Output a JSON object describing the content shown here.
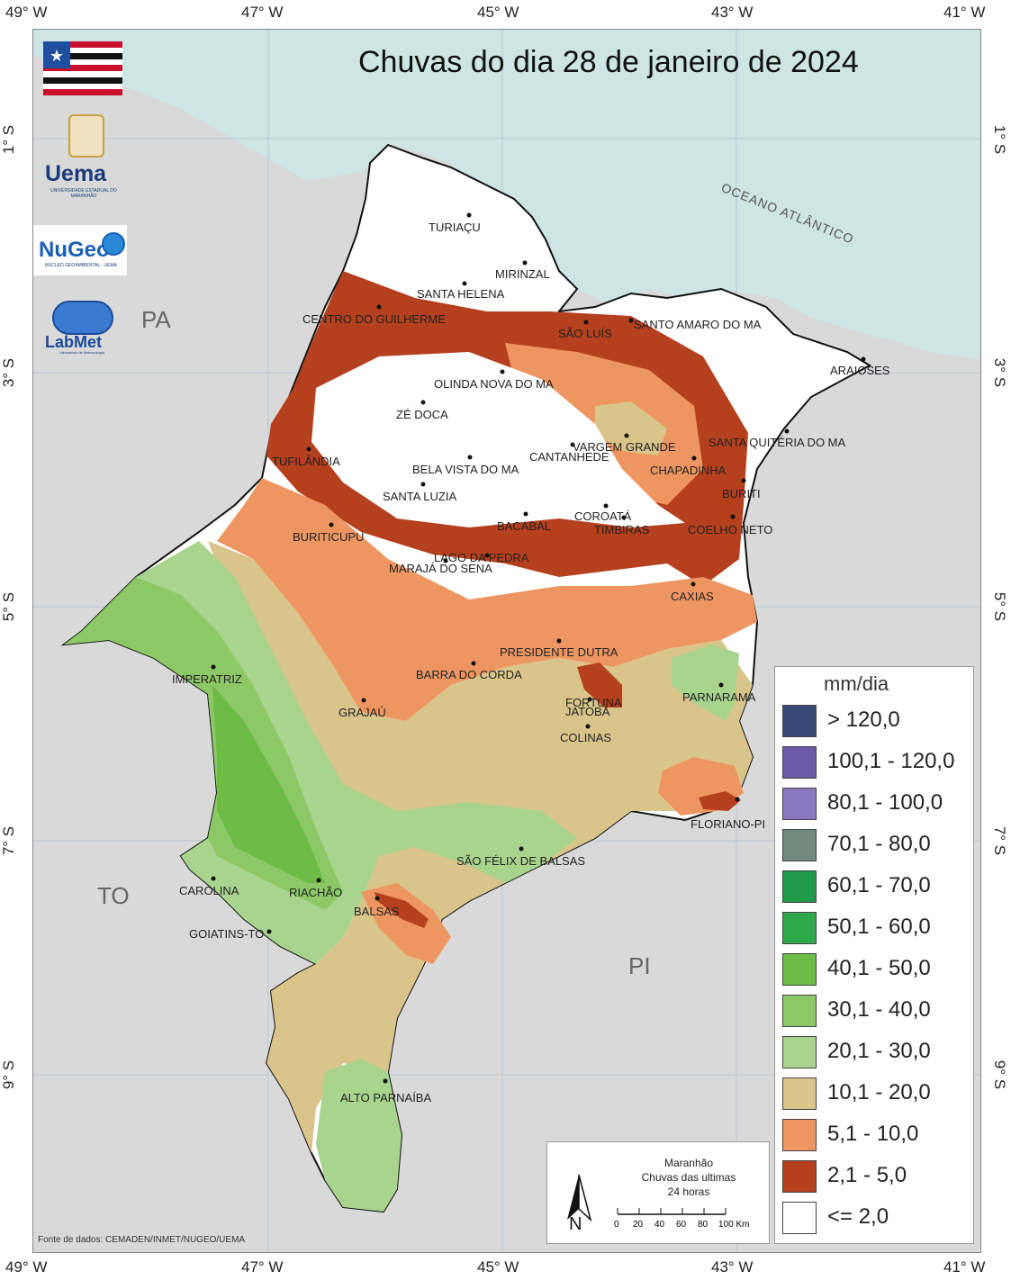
{
  "title": "Chuvas do dia 28 de janeiro de 2024",
  "lon_labels": [
    "49° W",
    "47° W",
    "45° W",
    "43° W",
    "41° W"
  ],
  "lat_labels": [
    "1° S",
    "3° S",
    "5° S",
    "7° S",
    "9° S"
  ],
  "state_labels": [
    "PA",
    "TO",
    "PI"
  ],
  "ocean_label": "OCEANO ATLÂNTICO",
  "logos": {
    "uema": "Uema",
    "uema_sub": "UNIVERSIDADE ESTADUAL DO MARANHÃO",
    "nugeo": "NuGeo",
    "nugeo_sub": "NÚCLEO GEOAMBIENTAL - UEMA",
    "labmet": "LabMet",
    "labmet_sub": "Laboratório de Meteorologia"
  },
  "cities": [
    "TURIAÇU",
    "MIRINZAL",
    "SANTA HELENA",
    "CENTRO DO GUILHERME",
    "SÃO LUÍS",
    "SANTO AMARO DO MA",
    "ARAIOSES",
    "OLINDA NOVA DO MA",
    "ZÉ DOCA",
    "VARGEM GRANDE",
    "SANTA QUITÉRIA DO MA",
    "TUFILÂNDIA",
    "CANTANHEDE",
    "CHAPADINHA",
    "BELA VISTA DO MA",
    "BURITI",
    "SANTA LUZIA",
    "COROATÁ",
    "TIMBIRAS",
    "COELHO NETO",
    "BACABAL",
    "BURITICUPU",
    "LAGO DA PEDRA",
    "MARAJÁ DO SENA",
    "CAXIAS",
    "PRESIDENTE DUTRA",
    "BARRA DO CORDA",
    "IMPERATRIZ",
    "PARNARAMA",
    "FORTUNA",
    "JATOBÁ",
    "GRAJAÚ",
    "COLINAS",
    "FLORIANO-PI",
    "SÃO FÉLIX DE BALSAS",
    "CAROLINA",
    "RIACHÃO",
    "BALSAS",
    "GOIATINS-TO",
    "ALTO PARNAÍBA"
  ],
  "legend": {
    "title": "mm/dia",
    "items": [
      {
        "label": "> 120,0",
        "color": "#3a4878"
      },
      {
        "label": "100,1 - 120,0",
        "color": "#6a5aa8"
      },
      {
        "label": "80,1 - 100,0",
        "color": "#8a78c0"
      },
      {
        "label": "70,1 - 80,0",
        "color": "#728a80"
      },
      {
        "label": "60,1 - 70,0",
        "color": "#1f9a4a"
      },
      {
        "label": "50,1 - 60,0",
        "color": "#2ea84a"
      },
      {
        "label": "40,1 - 50,0",
        "color": "#6cbc46"
      },
      {
        "label": "30,1 - 40,0",
        "color": "#8cc866"
      },
      {
        "label": "20,1 - 30,0",
        "color": "#a8d48e"
      },
      {
        "label": "10,1 - 20,0",
        "color": "#d9c48a"
      },
      {
        "label": "5,1 - 10,0",
        "color": "#ee9661"
      },
      {
        "label": "2,1 - 5,0",
        "color": "#b5401e"
      },
      {
        "label": "<= 2,0",
        "color": "#ffffff"
      }
    ]
  },
  "infobox": {
    "line1": "Maranhão",
    "line2": "Chuvas das ultimas",
    "line3": "24 horas",
    "north": "N",
    "scale_ticks": [
      "0",
      "20",
      "40",
      "60",
      "80",
      "100 Km"
    ]
  },
  "source": "Fonte de dados: CEMADEN/INMET/NUGEO/UEMA"
}
